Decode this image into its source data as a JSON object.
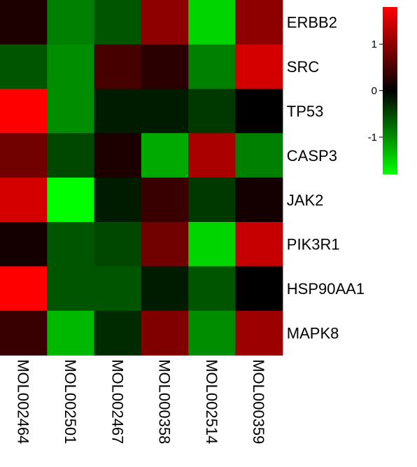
{
  "chart_data": {
    "type": "heatmap",
    "title": "",
    "rows": [
      "ERBB2",
      "SRC",
      "TP53",
      "CASP3",
      "JAK2",
      "PIK3R1",
      "HSP90AA1",
      "MAPK8"
    ],
    "columns": [
      "MOL002464",
      "MOL002501",
      "MOL002467",
      "MOL000358",
      "MOL002514",
      "MOL000359"
    ],
    "values": [
      [
        0.2,
        -0.9,
        -0.6,
        1.0,
        -1.5,
        1.0
      ],
      [
        -0.6,
        -1.0,
        0.5,
        0.3,
        -0.9,
        1.5
      ],
      [
        2.0,
        -1.0,
        -0.2,
        -0.2,
        -0.4,
        0.0
      ],
      [
        0.8,
        -0.5,
        0.2,
        -1.2,
        1.2,
        -0.9
      ],
      [
        1.5,
        -1.8,
        -0.2,
        0.4,
        -0.4,
        0.15
      ],
      [
        0.15,
        -0.6,
        -0.5,
        0.8,
        -1.5,
        1.4
      ],
      [
        2.0,
        -0.6,
        -0.6,
        -0.2,
        -0.6,
        0.0
      ],
      [
        0.4,
        -1.3,
        -0.3,
        0.9,
        -1.0,
        1.1
      ]
    ],
    "color_scale": {
      "min": -1.8,
      "max": 1.8,
      "low": "#00ff00",
      "mid": "#000000",
      "high": "#ff0000"
    },
    "legend": {
      "position": "top-right",
      "ticks": [
        1,
        0,
        -1
      ],
      "tick_labels": [
        "1",
        "0",
        "-1"
      ]
    }
  }
}
